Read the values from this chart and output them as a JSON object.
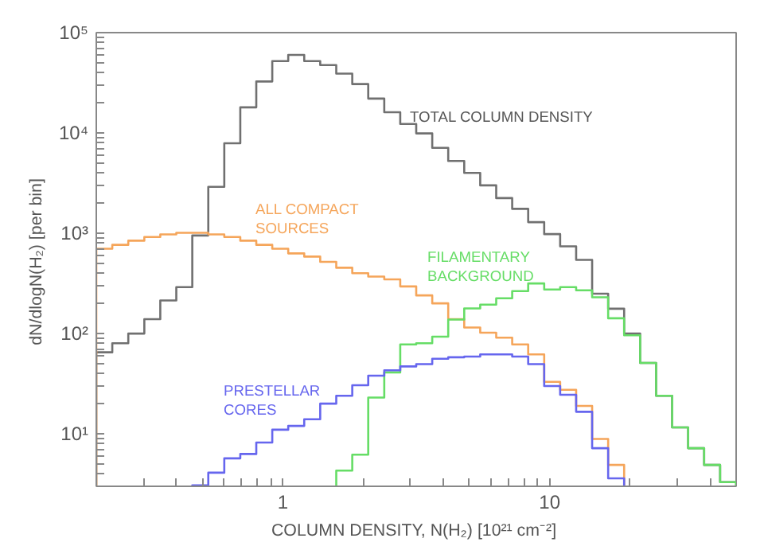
{
  "chart_data": {
    "type": "histogram",
    "xlabel": "COLUMN DENSITY, N(H₂)  [10²¹ cm⁻²]",
    "ylabel": "dN/dlogN(H₂)  [per bin]",
    "log": "xy",
    "grid": false,
    "xlim": [
      0.2,
      50
    ],
    "ylim": [
      3,
      100000
    ],
    "xticks": [
      {
        "value": 0.3,
        "label": null
      },
      {
        "value": 0.4,
        "label": null
      },
      {
        "value": 0.5,
        "label": null
      },
      {
        "value": 0.6,
        "label": null
      },
      {
        "value": 0.7,
        "label": null
      },
      {
        "value": 0.8,
        "label": null
      },
      {
        "value": 0.9,
        "label": null
      },
      1,
      {
        "value": 2,
        "label": null
      },
      {
        "value": 3,
        "label": null
      },
      {
        "value": 4,
        "label": null
      },
      {
        "value": 5,
        "label": null
      },
      {
        "value": 6,
        "label": null
      },
      {
        "value": 7,
        "label": null
      },
      {
        "value": 8,
        "label": null
      },
      {
        "value": 9,
        "label": null
      },
      10,
      {
        "value": 20,
        "label": null
      },
      {
        "value": 30,
        "label": null
      },
      {
        "value": 40,
        "label": null
      }
    ],
    "yticks": [
      {
        "value": 4,
        "label": null
      },
      {
        "value": 5,
        "label": null
      },
      {
        "value": 6,
        "label": null
      },
      {
        "value": 7,
        "label": null
      },
      {
        "value": 8,
        "label": null
      },
      {
        "value": 9,
        "label": null
      },
      {
        "value": 10,
        "label": "10¹"
      },
      {
        "value": 20,
        "label": null
      },
      {
        "value": 30,
        "label": null
      },
      {
        "value": 40,
        "label": null
      },
      {
        "value": 50,
        "label": null
      },
      {
        "value": 60,
        "label": null
      },
      {
        "value": 70,
        "label": null
      },
      {
        "value": 80,
        "label": null
      },
      {
        "value": 90,
        "label": null
      },
      {
        "value": 100,
        "label": "10²"
      },
      {
        "value": 200,
        "label": null
      },
      {
        "value": 300,
        "label": null
      },
      {
        "value": 400,
        "label": null
      },
      {
        "value": 500,
        "label": null
      },
      {
        "value": 600,
        "label": null
      },
      {
        "value": 700,
        "label": null
      },
      {
        "value": 800,
        "label": null
      },
      {
        "value": 900,
        "label": null
      },
      {
        "value": 1000,
        "label": "10³"
      },
      {
        "value": 2000,
        "label": null
      },
      {
        "value": 3000,
        "label": null
      },
      {
        "value": 4000,
        "label": null
      },
      {
        "value": 5000,
        "label": null
      },
      {
        "value": 6000,
        "label": null
      },
      {
        "value": 7000,
        "label": null
      },
      {
        "value": 8000,
        "label": null
      },
      {
        "value": 9000,
        "label": null
      },
      {
        "value": 10000,
        "label": "10⁴"
      },
      {
        "value": 20000,
        "label": null
      },
      {
        "value": 30000,
        "label": null
      },
      {
        "value": 40000,
        "label": null
      },
      {
        "value": 50000,
        "label": null
      },
      {
        "value": 60000,
        "label": null
      },
      {
        "value": 70000,
        "label": null
      },
      {
        "value": 80000,
        "label": null
      },
      {
        "value": 90000,
        "label": null
      },
      {
        "value": 100000,
        "label": "10⁵"
      }
    ],
    "bins": [
      0.2,
      0.2296,
      0.2636,
      0.3027,
      0.3474,
      0.3989,
      0.4579,
      0.5257,
      0.6035,
      0.6929,
      0.7954,
      0.9131,
      1.048,
      1.203,
      1.381,
      1.586,
      1.821,
      2.09,
      2.4,
      2.755,
      3.162,
      3.631,
      4.168,
      4.785,
      5.493,
      6.306,
      7.239,
      8.31,
      9.541,
      10.95,
      12.57,
      14.43,
      16.57,
      19.02,
      21.84,
      25.07,
      28.78,
      33.04,
      37.93,
      43.54,
      50.0
    ],
    "series": [
      {
        "color": "#707070",
        "values": [
          65,
          80,
          100,
          139,
          214,
          290,
          950,
          2900,
          7900,
          18000,
          32600,
          52000,
          60000,
          52000,
          47500,
          39000,
          30700,
          22000,
          16100,
          12300,
          9900,
          7100,
          5250,
          4000,
          3000,
          2240,
          1750,
          1290,
          980,
          740,
          543,
          250,
          177,
          100,
          51,
          24,
          11.6,
          7.2,
          4.9,
          3.3
        ]
      },
      {
        "color": "#f5a55a",
        "bins": [
          0.2,
          0.2296,
          0.2636,
          0.3027,
          0.3474,
          0.3989,
          0.4579,
          0.5257,
          0.6035,
          0.6929,
          0.7954,
          0.9131,
          1.048,
          1.203,
          1.381,
          1.586,
          1.821,
          2.09,
          2.4,
          2.755,
          3.162,
          3.631,
          4.168,
          4.785,
          5.493,
          6.306,
          7.239,
          8.31,
          9.541,
          10.95,
          12.57,
          14.43,
          16.57,
          19.02
        ],
        "values": [
          700,
          766,
          843,
          919,
          975,
          1010,
          1010,
          975,
          919,
          843,
          766,
          700,
          630,
          585,
          518,
          453,
          400,
          370,
          347,
          295,
          240,
          200,
          139,
          115,
          102,
          91,
          78,
          62,
          33,
          27.5,
          19,
          8.9,
          4.9
        ]
      },
      {
        "color": "#66dd66",
        "bins": [
          1.586,
          1.821,
          2.09,
          2.4,
          2.755,
          3.162,
          3.631,
          4.168,
          4.785,
          5.493,
          6.306,
          7.239,
          8.31,
          9.541,
          10.95,
          12.57,
          14.43,
          16.57,
          19.02,
          21.84,
          25.07,
          28.78,
          33.04,
          37.93,
          43.54,
          50.0
        ],
        "values": [
          4.3,
          6.2,
          23,
          41,
          78,
          80,
          93,
          138,
          178,
          194,
          225,
          265,
          316,
          275,
          290,
          270,
          230,
          142,
          96,
          51,
          24,
          11.6,
          7.2,
          4.9,
          3.3
        ]
      },
      {
        "color": "#6666ee",
        "bins": [
          0.4579,
          0.5257,
          0.6035,
          0.6929,
          0.7954,
          0.9131,
          1.048,
          1.203,
          1.381,
          1.586,
          1.821,
          2.09,
          2.4,
          2.755,
          3.162,
          3.631,
          4.168,
          4.785,
          5.493,
          6.306,
          7.239,
          8.31,
          9.541,
          10.95,
          12.57,
          14.43,
          16.57,
          19.02
        ],
        "values": [
          3.07,
          4.1,
          5.7,
          6.3,
          8.2,
          11,
          12,
          14,
          20,
          24,
          30.5,
          38,
          43,
          47,
          49.5,
          56,
          58,
          59,
          62,
          62,
          59,
          49.5,
          30,
          24.5,
          16.6,
          7.2,
          3.6
        ]
      }
    ],
    "annotations": [
      "TOTAL COLUMN DENSITY",
      "ALL COMPACT\nSOURCES",
      "FILAMENTARY\nBACKGROUND",
      "PRESTELLAR\nCORES"
    ]
  }
}
